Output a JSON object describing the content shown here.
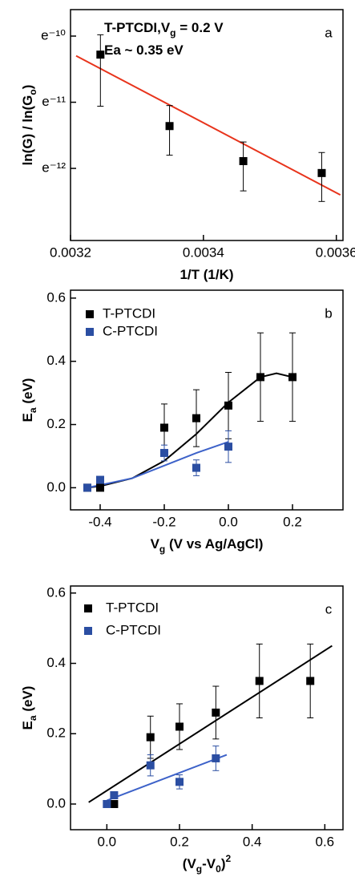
{
  "chart_data": [
    {
      "type": "scatter",
      "log_y": true,
      "panel_label": "a",
      "annotations": [
        [
          {
            "text": "T-PTCDI,V"
          },
          {
            "text": "g",
            "shift": "sub"
          },
          {
            "text": " = 0.2 V"
          }
        ],
        [
          {
            "text": "Ea ~ 0.35 eV"
          }
        ]
      ],
      "xlabel": [
        {
          "text": "1/T (1/K)"
        }
      ],
      "ylabel": [
        {
          "text": "ln(G) / ln(G"
        },
        {
          "text": "o",
          "shift": "sub"
        },
        {
          "text": ")"
        }
      ],
      "xlim": [
        0.0032,
        0.00361
      ],
      "xticks": [
        0.0032,
        0.0034,
        0.0036
      ],
      "ylim": [
        2.066e-06,
        6.773e-05
      ],
      "yticks": [
        {
          "value": 4.54e-05,
          "label": "e⁻¹⁰"
        },
        {
          "value": 1.67e-05,
          "label": "e⁻¹¹"
        },
        {
          "value": 6.144e-06,
          "label": "e⁻¹²"
        }
      ],
      "series": [
        {
          "color": "#000000",
          "x": [
            0.003245,
            0.003349,
            0.00346,
            0.003578
          ],
          "values": [
            3.431e-05,
            1.165e-05,
            6.86e-06,
            5.729e-06
          ],
          "err_low": [
            1.573e-05,
            7.5e-06,
            4.373e-06,
            3.727e-06
          ],
          "err_high": [
            4.632e-05,
            1.589e-05,
            9.16e-06,
            7.81e-06
          ]
        }
      ],
      "fits": [
        {
          "color": "#e8341c",
          "x": [
            0.0032084,
            0.003606
          ],
          "values": [
            3.37e-05,
            4.118e-06
          ]
        }
      ]
    },
    {
      "type": "scatter",
      "panel_label": "b",
      "legend": "upper left",
      "xlabel": [
        {
          "text": "V"
        },
        {
          "text": "g",
          "shift": "sub"
        },
        {
          "text": " (V vs Ag/AgCl)"
        }
      ],
      "ylabel": [
        {
          "text": "E"
        },
        {
          "text": "a",
          "shift": "sub"
        },
        {
          "text": " (eV)"
        }
      ],
      "xlim": [
        -0.4925,
        0.3575
      ],
      "xticks": [
        -0.4,
        -0.2,
        {
          "value": 0,
          "label": "0.0"
        },
        0.2
      ],
      "ylim": [
        -0.07,
        0.625
      ],
      "yticks": [
        {
          "value": 0,
          "label": "0.0"
        },
        0.2,
        0.4,
        0.6
      ],
      "series": [
        {
          "name": "T-PTCDI",
          "color": "#000000",
          "x": [
            -0.44,
            -0.4,
            -0.2,
            -0.1,
            0,
            0.1,
            0.2
          ],
          "values": [
            0.0,
            0.0,
            0.19,
            0.22,
            0.26,
            0.35,
            0.35
          ],
          "errors": [
            0,
            0,
            0.075,
            0.09,
            0.105,
            0.14,
            0.14
          ]
        },
        {
          "name": "C-PTCDI",
          "color": "#2b4ea2",
          "x": [
            -0.44,
            -0.4,
            -0.2,
            -0.1,
            0
          ],
          "values": [
            0.0,
            0.025,
            0.11,
            0.063,
            0.13
          ],
          "errors": [
            0,
            0.005,
            0.025,
            0.025,
            0.05
          ]
        }
      ],
      "fits": [
        {
          "color": "#000000",
          "x": [
            -0.44,
            -0.4,
            -0.3,
            -0.2,
            -0.1,
            0,
            0.1,
            0.15,
            0.2
          ],
          "values": [
            0.0,
            0.005,
            0.03,
            0.085,
            0.17,
            0.27,
            0.35,
            0.362,
            0.35
          ]
        },
        {
          "color": "#3d62c9",
          "x": [
            -0.44,
            -0.3,
            -0.2,
            -0.1,
            0
          ],
          "values": [
            0.0,
            0.03,
            0.07,
            0.11,
            0.145
          ]
        }
      ]
    },
    {
      "type": "scatter",
      "panel_label": "c",
      "legend": "upper left",
      "xlabel": [
        {
          "text": "(V"
        },
        {
          "text": "g",
          "shift": "sub"
        },
        {
          "text": "-V"
        },
        {
          "text": "0",
          "shift": "sub"
        },
        {
          "text": ")"
        },
        {
          "text": "2",
          "shift": "super"
        }
      ],
      "ylabel": [
        {
          "text": "E"
        },
        {
          "text": "a",
          "shift": "sub"
        },
        {
          "text": " (eV)"
        }
      ],
      "xlim": [
        -0.1,
        0.65
      ],
      "xticks": [
        {
          "value": 0,
          "label": "0.0"
        },
        0.2,
        0.4,
        0.6
      ],
      "ylim": [
        -0.073,
        0.62
      ],
      "yticks": [
        {
          "value": 0,
          "label": "0.0"
        },
        0.2,
        0.4,
        0.6
      ],
      "series": [
        {
          "name": "T-PTCDI",
          "color": "#000000",
          "x": [
            0.02,
            0.12,
            0.2,
            0.3,
            0.42,
            0.56
          ],
          "values": [
            0.0,
            0.19,
            0.22,
            0.26,
            0.35,
            0.35
          ],
          "errors": [
            0,
            0.06,
            0.065,
            0.075,
            0.105,
            0.105
          ]
        },
        {
          "name": "C-PTCDI",
          "color": "#2b4ea2",
          "x": [
            0.0,
            0.02,
            0.12,
            0.2,
            0.3
          ],
          "values": [
            0.0,
            0.025,
            0.11,
            0.063,
            0.13
          ],
          "errors": [
            0,
            0.005,
            0.03,
            0.02,
            0.035
          ]
        }
      ],
      "fits": [
        {
          "color": "#000000",
          "x": [
            -0.05,
            0.62
          ],
          "values": [
            0.005,
            0.45
          ]
        },
        {
          "color": "#3d62c9",
          "x": [
            0.0,
            0.33
          ],
          "values": [
            0.01,
            0.14
          ]
        }
      ]
    }
  ]
}
